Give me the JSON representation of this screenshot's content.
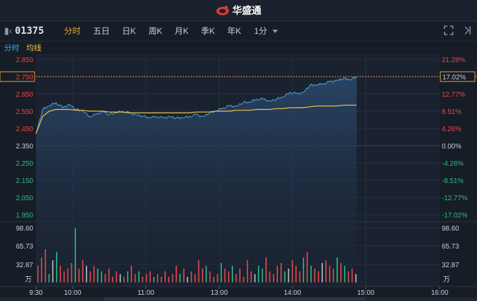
{
  "brand": {
    "name": "华盛通"
  },
  "stock": {
    "code": "01375"
  },
  "tabs": [
    {
      "label": "分时",
      "active": true
    },
    {
      "label": "五日",
      "active": false
    },
    {
      "label": "日K",
      "active": false
    },
    {
      "label": "周K",
      "active": false
    },
    {
      "label": "月K",
      "active": false
    },
    {
      "label": "季K",
      "active": false
    },
    {
      "label": "年K",
      "active": false
    }
  ],
  "period": {
    "label": "1分"
  },
  "legend": {
    "intraday": "分时",
    "avg": "均线"
  },
  "colors": {
    "price": "#4fa3e3",
    "avg": "#f5c542",
    "up": "#e84a4a",
    "down": "#2ebd85",
    "neutral": "#b8c2cc"
  },
  "chart_data": {
    "type": "line",
    "price_ticks": [
      "2.850",
      "2.750",
      "2.650",
      "2.550",
      "2.450",
      "2.350",
      "2.250",
      "2.150",
      "2.050",
      "1.950"
    ],
    "pct_ticks": [
      "21.28%",
      "17.02%",
      "12.77%",
      "8.51%",
      "4.26%",
      "0.00%",
      "-4.26%",
      "-8.51%",
      "-12.77%",
      "-17.02%"
    ],
    "price_range": [
      1.9,
      2.85
    ],
    "prev_close": 2.35,
    "current_price": "2.750",
    "current_pct": "17.02%",
    "volume_ticks": [
      "98.60",
      "65.73",
      "32.87"
    ],
    "volume_unit": "万",
    "volume_max": 98.6,
    "x_ticks": [
      "9:30",
      "10:00",
      "11:00",
      "13:00",
      "14:00",
      "15:00",
      "16:00"
    ],
    "series": [
      {
        "values": [
          2.42,
          2.56,
          2.58,
          2.6,
          2.57,
          2.59,
          2.56,
          2.55,
          2.52,
          2.53,
          2.55,
          2.53,
          2.54,
          2.55,
          2.54,
          2.53,
          2.52,
          2.51,
          2.52,
          2.51,
          2.52,
          2.51,
          2.51,
          2.52,
          2.53,
          2.52,
          2.54,
          2.55,
          2.57,
          2.58,
          2.58,
          2.6,
          2.6,
          2.62,
          2.62,
          2.61,
          2.62,
          2.63,
          2.66,
          2.65,
          2.66,
          2.7,
          2.7,
          2.71,
          2.72,
          2.73,
          2.74,
          2.73,
          2.75
        ]
      },
      {
        "values": [
          2.42,
          2.52,
          2.55,
          2.56,
          2.56,
          2.56,
          2.555,
          2.555,
          2.55,
          2.55,
          2.55,
          2.545,
          2.545,
          2.545,
          2.54,
          2.54,
          2.54,
          2.54,
          2.54,
          2.54,
          2.54,
          2.54,
          2.54,
          2.54,
          2.545,
          2.545,
          2.545,
          2.55,
          2.55,
          2.55,
          2.555,
          2.555,
          2.555,
          2.56,
          2.56,
          2.56,
          2.565,
          2.565,
          2.57,
          2.57,
          2.57,
          2.575,
          2.58,
          2.58,
          2.58,
          2.58,
          2.585,
          2.585,
          2.585
        ]
      }
    ],
    "volumes": [
      30,
      45,
      60,
      15,
      40,
      55,
      30,
      20,
      25,
      35,
      98,
      25,
      40,
      30,
      20,
      30,
      25,
      20,
      15,
      25,
      10,
      20,
      15,
      10,
      20,
      30,
      15,
      20,
      10,
      15,
      20,
      10,
      15,
      10,
      20,
      10,
      15,
      30,
      15,
      25,
      10,
      20,
      15,
      40,
      25,
      30,
      20,
      10,
      15,
      35,
      25,
      20,
      30,
      15,
      25,
      10,
      40,
      20,
      15,
      30,
      25,
      45,
      20,
      15,
      30,
      35,
      20,
      25,
      40,
      30,
      20,
      45,
      55,
      30,
      25,
      20,
      35,
      40,
      30,
      25,
      45,
      35,
      30,
      20,
      25,
      15
    ]
  }
}
